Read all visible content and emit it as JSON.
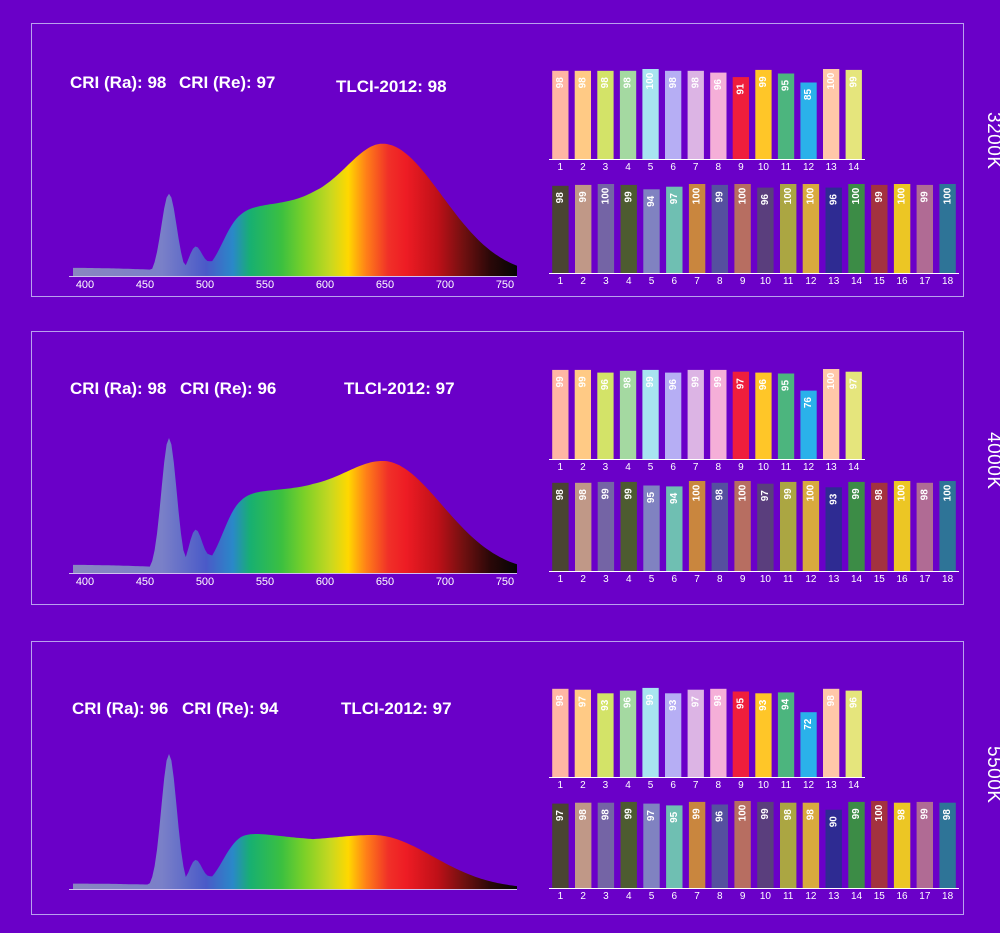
{
  "legend": {
    "ri_labels": [
      "1",
      "2",
      "3",
      "4",
      "5",
      "6",
      "7",
      "8",
      "9",
      "10",
      "11",
      "12",
      "13",
      "14"
    ],
    "r_labels": [
      "1",
      "2",
      "3",
      "4",
      "5",
      "6",
      "7",
      "8",
      "9",
      "10",
      "11",
      "12",
      "13",
      "14",
      "15",
      "16",
      "17",
      "18"
    ],
    "ri_colors": [
      "#ffb6a4",
      "#ffca85",
      "#d3e368",
      "#a4d9a1",
      "#a8e4f0",
      "#b6aef4",
      "#dcb4e4",
      "#f5afd8",
      "#ef1e3c",
      "#ffc628",
      "#4cb57e",
      "#2ab1ea",
      "#ffc7a9",
      "#e5e57c"
    ],
    "r_colors": [
      "#4a4432",
      "#c09887",
      "#7464a5",
      "#4d5b30",
      "#8082c1",
      "#6fbfb2",
      "#c9863e",
      "#55509f",
      "#b76e61",
      "#5a3e7d",
      "#aba642",
      "#d8aa3e",
      "#2e2b92",
      "#3c8c46",
      "#a3323f",
      "#ecc624",
      "#b06b94",
      "#2e7497"
    ]
  },
  "chart_data": [
    {
      "type": "bar",
      "cct": "3200K",
      "metrics": {
        "cri_ra": "CRI (Ra): 98",
        "cri_re": "CRI (Re): 97",
        "tlci": "TLCI-2012: 98"
      },
      "spectrum": {
        "xticks": [
          "400",
          "450",
          "500",
          "550",
          "600",
          "650",
          "700",
          "750"
        ],
        "xlim": [
          390,
          760
        ],
        "peak_blue": 0.61,
        "dip": 0.2,
        "plateau_start": 0.51,
        "plateau_end": 0.56,
        "peak_red": 0.98,
        "peak_red_nm": 648,
        "tail": 0.05
      },
      "ri_values": [
        98,
        98,
        98,
        98,
        100,
        98,
        98,
        96,
        91,
        99,
        95,
        85,
        100,
        99
      ],
      "r_values": [
        98,
        99,
        100,
        99,
        94,
        97,
        100,
        99,
        100,
        96,
        100,
        100,
        96,
        100,
        99,
        100,
        99,
        100
      ]
    },
    {
      "type": "bar",
      "cct": "4000K",
      "metrics": {
        "cri_ra": "CRI (Ra): 98",
        "cri_re": "CRI (Re): 96",
        "tlci": "TLCI-2012: 97"
      },
      "spectrum": {
        "xticks": [
          "400",
          "450",
          "500",
          "550",
          "600",
          "650",
          "700",
          "750"
        ],
        "xlim": [
          390,
          760
        ],
        "peak_blue": 1.0,
        "dip": 0.3,
        "plateau_start": 0.6,
        "plateau_end": 0.63,
        "peak_red": 0.83,
        "peak_red_nm": 648,
        "tail": 0.05
      },
      "ri_values": [
        99,
        99,
        96,
        98,
        99,
        96,
        99,
        99,
        97,
        96,
        95,
        76,
        100,
        97
      ],
      "r_values": [
        98,
        98,
        99,
        99,
        95,
        94,
        100,
        98,
        100,
        97,
        99,
        100,
        93,
        99,
        98,
        100,
        98,
        100
      ]
    },
    {
      "type": "bar",
      "cct": "5500K",
      "metrics": {
        "cri_ra": "CRI (Ra): 96",
        "cri_re": "CRI (Re): 94",
        "tlci": "TLCI-2012: 97"
      },
      "spectrum": {
        "xticks": [],
        "xlim": [
          390,
          760
        ],
        "peak_blue": 1.0,
        "dip": 0.2,
        "plateau_start": 0.43,
        "plateau_end": 0.36,
        "peak_red": 0.4,
        "peak_red_nm": 640,
        "tail": 0.03
      },
      "ri_values": [
        98,
        97,
        93,
        96,
        99,
        93,
        97,
        98,
        95,
        93,
        94,
        72,
        98,
        96
      ],
      "r_values": [
        97,
        98,
        98,
        99,
        97,
        95,
        99,
        96,
        100,
        99,
        98,
        98,
        90,
        99,
        100,
        98,
        99,
        98
      ]
    }
  ]
}
